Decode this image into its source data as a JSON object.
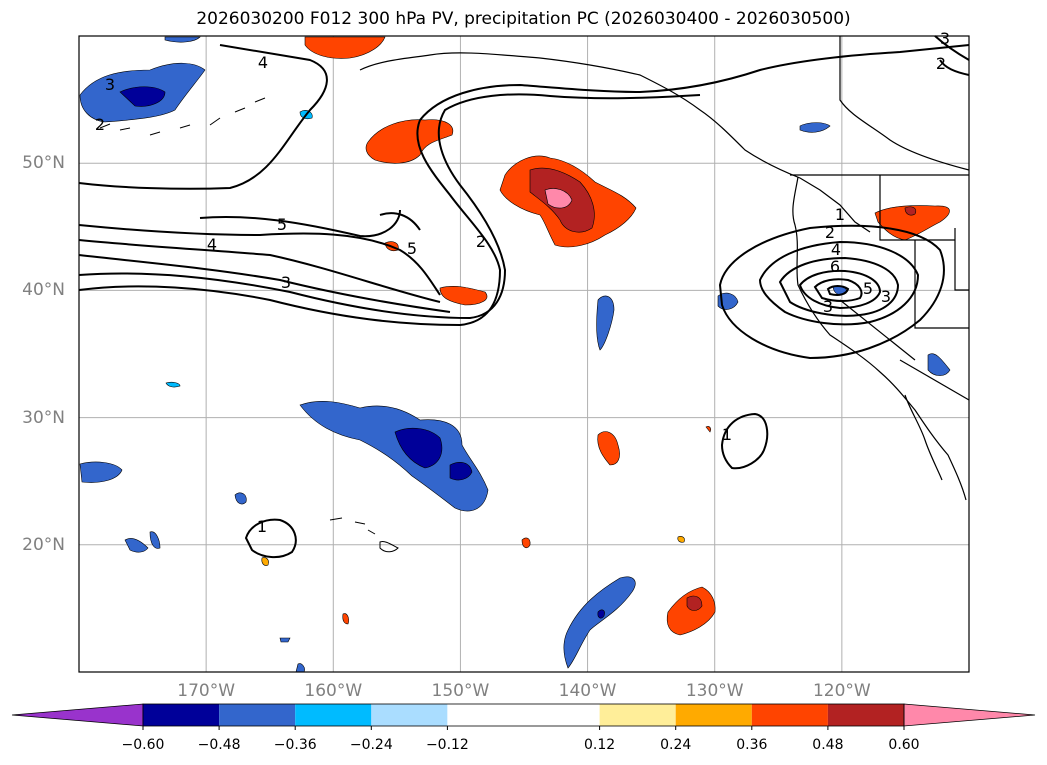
{
  "title": "2026030200 F012 300 hPa PV, precipitation PC (2026030400 - 2026030500)",
  "map": {
    "projection": "cylindrical",
    "lon_range": [
      -180,
      -110
    ],
    "lat_range": [
      10,
      60
    ],
    "lat_labels": [
      "50°N",
      "40°N",
      "30°N",
      "20°N"
    ],
    "lat_values": [
      50,
      40,
      30,
      20
    ],
    "lon_labels": [
      "170°W",
      "160°W",
      "150°W",
      "140°W",
      "130°W",
      "120°W"
    ],
    "lon_values": [
      -170,
      -160,
      -150,
      -140,
      -130,
      -120
    ],
    "gridlines": true,
    "background": "#ffffff",
    "line_color": "#000000",
    "grid_color": "#b0b0b0"
  },
  "pv_contours": {
    "variable": "300 hPa PV",
    "labels": [
      "4",
      "3",
      "5",
      "4",
      "3",
      "2",
      "5",
      "2",
      "1",
      "2",
      "4",
      "6",
      "5",
      "3",
      "1",
      "1",
      "3",
      "2",
      "3"
    ]
  },
  "colorbar": {
    "colors": [
      "#9933cc",
      "#000099",
      "#3366cc",
      "#00bbff",
      "#aaddff",
      "#ffffff",
      "#ffee99",
      "#ffaa00",
      "#ff4400",
      "#b22222",
      "#ff88aa"
    ],
    "tick_labels": [
      "−0.60",
      "−0.48",
      "−0.36",
      "−0.24",
      "−0.12",
      "0.12",
      "0.24",
      "0.36",
      "0.48",
      "0.60"
    ],
    "tick_values": [
      -0.6,
      -0.48,
      -0.36,
      -0.24,
      -0.12,
      0.12,
      0.24,
      0.36,
      0.48,
      0.6
    ],
    "extend": "both"
  }
}
